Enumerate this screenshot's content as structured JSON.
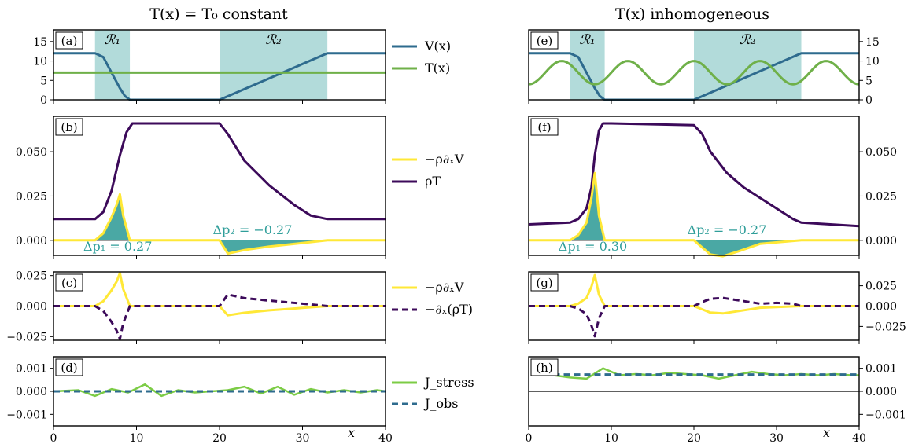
{
  "colors": {
    "V": "#2e6b8e",
    "T": "#6fb049",
    "force": "#ffe837",
    "rhoT": "#3c0a5a",
    "stress": "#7ccc45",
    "obs": "#2e6b8e",
    "region": "#b2dbda",
    "fill": "#4aa8a4",
    "annot": "#2f9e9a"
  },
  "titles": {
    "left": "T(x) = T₀ constant",
    "right": "T(x) inhomogeneous"
  },
  "x_axis": {
    "label": "x",
    "ticks": [
      0,
      10,
      20,
      30,
      40
    ],
    "range": [
      0,
      40
    ]
  },
  "panel_labels": [
    "(a)",
    "(b)",
    "(c)",
    "(d)",
    "(e)",
    "(f)",
    "(g)",
    "(h)"
  ],
  "regions": {
    "R1": {
      "label": "ℛ₁",
      "x": [
        5,
        9.2
      ]
    },
    "R2": {
      "label": "ℛ₂",
      "x": [
        20,
        33
      ]
    }
  },
  "legends": {
    "row_a": [
      "V(x)",
      "T(x)"
    ],
    "row_b": [
      "−ρ∂ₓV",
      "ρT"
    ],
    "row_c": [
      "−ρ∂ₓV",
      "−∂ₓ(ρT)"
    ],
    "row_d": [
      "J_stress",
      "J_obs"
    ]
  },
  "annotations": {
    "left": {
      "dp1": "Δp₁ = 0.27",
      "dp2": "Δp₂ = −0.27"
    },
    "right": {
      "dp1": "Δp₁ = 0.30",
      "dp2": "Δp₂ = −0.27"
    }
  },
  "chart_data": [
    {
      "panel": "a",
      "type": "line",
      "ylim": [
        0,
        18
      ],
      "yticks": [
        "0",
        "5",
        "10",
        "15"
      ],
      "ytick_values": [
        0,
        5,
        10,
        15
      ],
      "series": [
        {
          "name": "V(x)",
          "x": [
            0,
            5,
            6,
            7,
            8,
            8.6,
            9.2,
            20,
            33,
            40
          ],
          "y": [
            12,
            12,
            11,
            7,
            3,
            1,
            0,
            0,
            12,
            12
          ]
        },
        {
          "name": "T(x)",
          "x": [
            0,
            40
          ],
          "y": [
            7,
            7
          ]
        }
      ]
    },
    {
      "panel": "e",
      "type": "line",
      "ylim": [
        0,
        18
      ],
      "yticks": [
        "0",
        "5",
        "10",
        "15"
      ],
      "ytick_values": [
        0,
        5,
        10,
        15
      ],
      "series": [
        {
          "name": "V(x)",
          "x": [
            0,
            5,
            6,
            7,
            8,
            8.6,
            9.2,
            20,
            33,
            40
          ],
          "y": [
            12,
            12,
            11,
            7,
            3,
            1,
            0,
            0,
            12,
            12
          ]
        },
        {
          "name": "T(x)",
          "formula": "7 + 3*sin(2*pi*(x-2)/8)",
          "x_range": [
            0,
            40
          ]
        }
      ]
    },
    {
      "panel": "b",
      "type": "line",
      "ylim": [
        -0.0085,
        0.07
      ],
      "yticks": [
        "0.000",
        "0.025",
        "0.050"
      ],
      "ytick_values": [
        0,
        0.025,
        0.05
      ],
      "series": [
        {
          "name": "−ρ∂ₓV",
          "x": [
            0,
            5,
            6,
            7,
            7.6,
            8,
            8.4,
            9.2,
            20,
            21,
            23,
            26,
            30,
            33,
            40
          ],
          "y": [
            0,
            0,
            0.004,
            0.013,
            0.02,
            0.026,
            0.014,
            0,
            0,
            -0.0075,
            -0.0055,
            -0.0035,
            -0.0015,
            0,
            0
          ]
        },
        {
          "name": "ρT",
          "x": [
            0,
            5,
            6,
            7,
            8,
            8.8,
            9.5,
            10,
            20,
            21,
            23,
            26,
            29,
            31,
            33,
            40
          ],
          "y": [
            0.012,
            0.012,
            0.016,
            0.028,
            0.048,
            0.061,
            0.066,
            0.066,
            0.066,
            0.06,
            0.045,
            0.031,
            0.02,
            0.014,
            0.012,
            0.012
          ]
        }
      ]
    },
    {
      "panel": "f",
      "type": "line",
      "ylim": [
        -0.0085,
        0.07
      ],
      "yticks": [
        "0.000",
        "0.025",
        "0.050"
      ],
      "ytick_values": [
        0,
        0.025,
        0.05
      ],
      "series": [
        {
          "name": "−ρ∂ₓV",
          "x": [
            0,
            5,
            6,
            7,
            7.6,
            8,
            8.5,
            9.2,
            20,
            21,
            22,
            23.5,
            25.5,
            28,
            33,
            40
          ],
          "y": [
            0,
            0,
            0.003,
            0.01,
            0.024,
            0.038,
            0.014,
            0,
            0,
            -0.004,
            -0.008,
            -0.009,
            -0.006,
            -0.002,
            0,
            0
          ]
        },
        {
          "name": "ρT",
          "x": [
            0,
            5,
            6,
            7,
            7.6,
            8,
            8.5,
            9,
            10,
            20,
            21,
            22,
            24,
            26,
            28,
            30,
            32,
            33,
            40
          ],
          "y": [
            0.009,
            0.01,
            0.012,
            0.018,
            0.03,
            0.048,
            0.062,
            0.066,
            0.066,
            0.065,
            0.06,
            0.05,
            0.038,
            0.03,
            0.024,
            0.018,
            0.012,
            0.01,
            0.008
          ]
        }
      ]
    },
    {
      "panel": "c",
      "type": "line",
      "ylim": [
        -0.028,
        0.028
      ],
      "yticks": [
        "−0.025",
        "0.000",
        "0.025"
      ],
      "ytick_values": [
        -0.025,
        0,
        0.025
      ],
      "series": [
        {
          "name": "−ρ∂ₓV",
          "x": [
            0,
            5,
            6,
            7,
            7.6,
            8,
            8.4,
            9.2,
            20,
            21,
            23,
            26,
            30,
            33,
            40
          ],
          "y": [
            0,
            0,
            0.004,
            0.013,
            0.02,
            0.027,
            0.014,
            0,
            0,
            -0.0075,
            -0.0055,
            -0.0035,
            -0.0015,
            0,
            0
          ]
        },
        {
          "name": "−∂ₓ(ρT)",
          "x": [
            0,
            5,
            6,
            7,
            7.6,
            8,
            8.4,
            9.2,
            20,
            21,
            23,
            26,
            30,
            33,
            40
          ],
          "y": [
            0,
            0,
            -0.004,
            -0.013,
            -0.02,
            -0.027,
            -0.014,
            0,
            0,
            0.0095,
            0.0065,
            0.0045,
            0.002,
            0,
            0
          ]
        }
      ]
    },
    {
      "panel": "g",
      "type": "line",
      "ylim": [
        -0.042,
        0.042
      ],
      "yticks": [
        "−0.025",
        "0.000",
        "0.025"
      ],
      "ytick_values": [
        -0.025,
        0,
        0.025
      ],
      "series": [
        {
          "name": "−ρ∂ₓV",
          "x": [
            0,
            5,
            6,
            7,
            7.6,
            8,
            8.5,
            9.2,
            20,
            21,
            22,
            23.5,
            25.5,
            28,
            33,
            40
          ],
          "y": [
            0,
            0,
            0.003,
            0.01,
            0.024,
            0.038,
            0.014,
            0,
            0,
            -0.004,
            -0.008,
            -0.009,
            -0.006,
            -0.002,
            0,
            0
          ]
        },
        {
          "name": "−∂ₓ(ρT)",
          "x": [
            0,
            5,
            6,
            7,
            7.6,
            8,
            8.5,
            9.2,
            20,
            21,
            22,
            23.5,
            25.5,
            28,
            30,
            32,
            33,
            40
          ],
          "y": [
            0,
            0,
            -0.003,
            -0.01,
            -0.024,
            -0.037,
            -0.015,
            0,
            0,
            0.005,
            0.009,
            0.01,
            0.007,
            0.003,
            0.004,
            0.003,
            0,
            0
          ]
        }
      ]
    },
    {
      "panel": "d",
      "type": "line",
      "ylim": [
        -0.0015,
        0.0015
      ],
      "yticks": [
        "−0.001",
        "0.000",
        "0.001"
      ],
      "ytick_values": [
        -0.001,
        0,
        0.001
      ],
      "series": [
        {
          "name": "J_stress",
          "x": [
            0,
            3,
            5,
            7,
            9,
            11,
            13,
            15,
            17,
            19,
            21,
            23,
            25,
            27,
            29,
            31,
            33,
            35,
            37,
            39,
            40
          ],
          "y": [
            0,
            5e-05,
            -0.0002,
            0.0001,
            -5e-05,
            0.0003,
            -0.0002,
            5e-05,
            -5e-05,
            0,
            5e-05,
            0.0002,
            -0.0001,
            0.0002,
            -0.00015,
            0.0001,
            -5e-05,
            5e-05,
            -5e-05,
            5e-05,
            0
          ]
        },
        {
          "name": "J_obs",
          "x": [
            0,
            40
          ],
          "y": [
            0,
            0
          ]
        }
      ]
    },
    {
      "panel": "h",
      "type": "line",
      "ylim": [
        -0.0015,
        0.0015
      ],
      "yticks": [
        "−0.001",
        "0.000",
        "0.001"
      ],
      "ytick_values": [
        -0.001,
        0,
        0.001
      ],
      "series": [
        {
          "name": "J_stress",
          "x": [
            3,
            5,
            7,
            9,
            11,
            13,
            15,
            17,
            19,
            21,
            23,
            25,
            27,
            29,
            31,
            33,
            35,
            37,
            39,
            40
          ],
          "y": [
            0.0007,
            0.0006,
            0.00055,
            0.001,
            0.0007,
            0.00075,
            0.0007,
            0.0008,
            0.00075,
            0.0007,
            0.00055,
            0.0007,
            0.00085,
            0.00075,
            0.0007,
            0.00075,
            0.0007,
            0.00075,
            0.0007,
            0.0007
          ]
        },
        {
          "name": "J_obs",
          "x": [
            3,
            40
          ],
          "y": [
            0.00073,
            0.00073
          ]
        }
      ]
    }
  ]
}
